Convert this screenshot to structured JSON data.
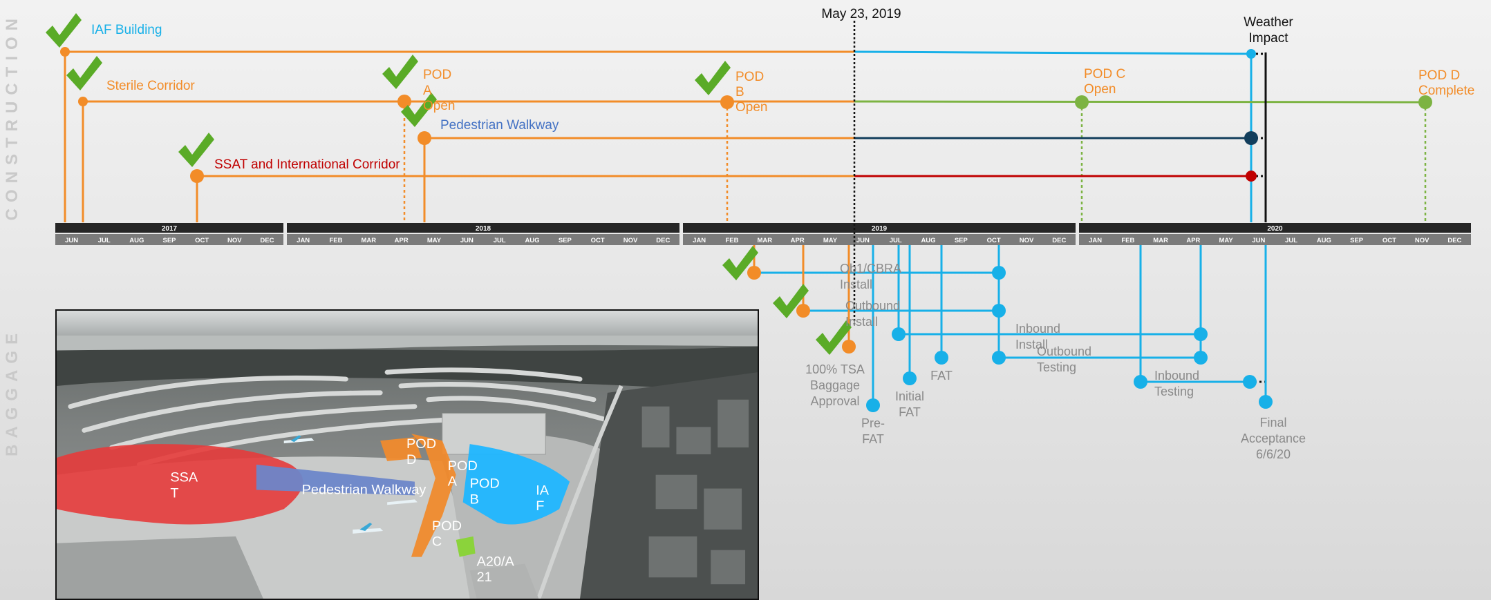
{
  "side_labels": {
    "construction": "CONSTRUCTION",
    "baggage": "BAGGAGE"
  },
  "current_date": "May 23, 2019",
  "weather": [
    "Weather",
    "Impact"
  ],
  "years": [
    "2017",
    "2018",
    "2019",
    "2020"
  ],
  "months": {
    "2017": [
      "JUN",
      "JUL",
      "AUG",
      "SEP",
      "OCT",
      "NOV",
      "DEC"
    ],
    "2018": [
      "JAN",
      "FEB",
      "MAR",
      "APR",
      "MAY",
      "JUN",
      "JUL",
      "AUG",
      "SEP",
      "OCT",
      "NOV",
      "DEC"
    ],
    "2019": [
      "JAN",
      "FEB",
      "MAR",
      "APR",
      "MAY",
      "JUN",
      "JUL",
      "AUG",
      "SEP",
      "OCT",
      "NOV",
      "DEC"
    ],
    "2020": [
      "JAN",
      "FEB",
      "MAR",
      "APR",
      "MAY",
      "JUN",
      "JUL",
      "AUG",
      "SEP",
      "OCT",
      "NOV",
      "DEC"
    ]
  },
  "construction": [
    {
      "key": "iaf",
      "label": [
        "IAF Building"
      ],
      "done": true,
      "start": "2017-06",
      "color": "#17b0e8"
    },
    {
      "key": "sterile",
      "label": [
        "Sterile Corridor"
      ],
      "done": true,
      "start": "2017-07",
      "color": "#f28c28"
    },
    {
      "key": "pod_a",
      "label": [
        "POD",
        "A",
        "Open"
      ],
      "done": true,
      "date": "2018-04",
      "color": "#f28c28"
    },
    {
      "key": "pod_b",
      "label": [
        "POD",
        "B",
        "Open"
      ],
      "done": true,
      "date": "2019-02",
      "color": "#f28c28"
    },
    {
      "key": "pod_c",
      "label": [
        "POD C",
        "Open"
      ],
      "done": false,
      "date": "2020-01",
      "color": "#f28c28"
    },
    {
      "key": "pod_d",
      "label": [
        "POD D",
        "Complete"
      ],
      "done": false,
      "date": "2020-11",
      "color": "#f28c28"
    },
    {
      "key": "walkway",
      "label": [
        "Pedestrian Walkway"
      ],
      "done": true,
      "start": "2018-05",
      "color": "#4472c4"
    },
    {
      "key": "ssat",
      "label": [
        "SSAT and International Corridor"
      ],
      "done": true,
      "start": "2017-10",
      "color": "#c00000"
    }
  ],
  "baggage": [
    {
      "key": "ob_cbra",
      "label": [
        "Ob1/CBRA",
        "Install"
      ],
      "done": true
    },
    {
      "key": "outbound_install",
      "label": [
        "Outbound",
        "Install"
      ],
      "done": true
    },
    {
      "key": "tsa",
      "label": [
        "100% TSA",
        "Baggage",
        "Approval"
      ],
      "done": true
    },
    {
      "key": "inbound_install",
      "label": [
        "Inbound",
        "Install"
      ],
      "done": false
    },
    {
      "key": "outbound_testing",
      "label": [
        "Outbound",
        "Testing"
      ],
      "done": false
    },
    {
      "key": "inbound_testing",
      "label": [
        "Inbound",
        "Testing"
      ],
      "done": false
    },
    {
      "key": "fat",
      "label": [
        "FAT"
      ],
      "done": false
    },
    {
      "key": "initial_fat",
      "label": [
        "Initial",
        "FAT"
      ],
      "done": false
    },
    {
      "key": "pre_fat",
      "label": [
        "Pre-",
        "FAT"
      ],
      "done": false
    },
    {
      "key": "final",
      "label": [
        "Final",
        "Acceptance",
        "6/6/20"
      ],
      "done": false
    }
  ],
  "photo_labels": {
    "ssat": [
      "SSA",
      "T"
    ],
    "walkway": "Pedestrian Walkway",
    "pod_d": [
      "POD",
      "D"
    ],
    "pod_a": [
      "POD",
      "A"
    ],
    "pod_b": [
      "POD",
      "B"
    ],
    "pod_c": [
      "POD",
      "C"
    ],
    "iaf": [
      "IA",
      "F"
    ],
    "a20": [
      "A20/A",
      "21"
    ]
  },
  "colors": {
    "orange": "#f28c28",
    "blue": "#17b0e8",
    "green": "#7cb342",
    "navy": "#123e5c",
    "red": "#c00000",
    "check": "#5aab27",
    "gray_text": "#8a8a8a"
  }
}
